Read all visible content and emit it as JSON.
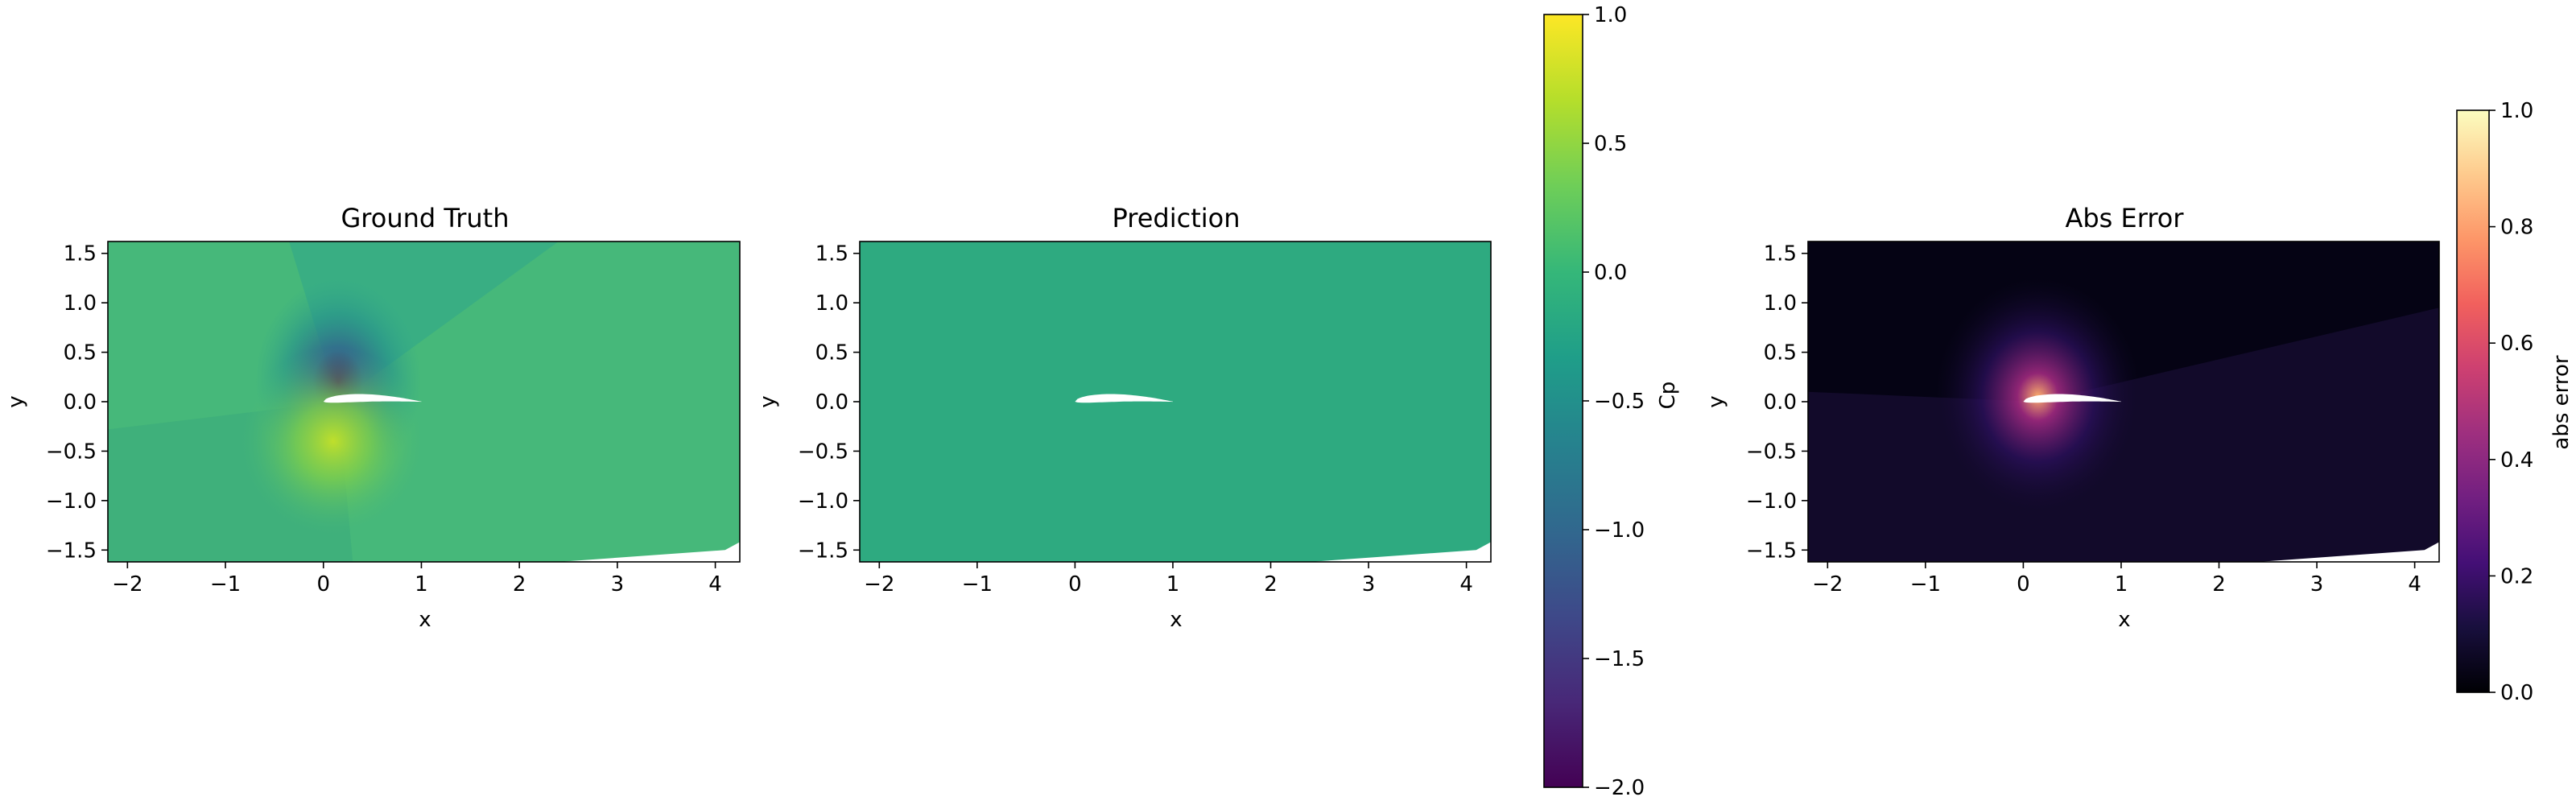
{
  "chart_data": [
    {
      "type": "heatmap",
      "title": "Ground Truth",
      "xlabel": "x",
      "ylabel": "y",
      "xlim": [
        -2.2,
        4.25
      ],
      "ylim": [
        -1.62,
        1.62
      ],
      "xticks": [
        -2,
        -1,
        0,
        1,
        2,
        3,
        4
      ],
      "yticks": [
        1.5,
        1.0,
        0.5,
        0.0,
        -0.5,
        -1.0,
        -1.5
      ],
      "xtick_labels": [
        "−2",
        "−1",
        "0",
        "1",
        "2",
        "3",
        "4"
      ],
      "ytick_labels": [
        "1.5",
        "1.0",
        "0.5",
        "0.0",
        "−0.5",
        "−1.0",
        "−1.5"
      ],
      "colormap": "viridis",
      "colorbar": "Cp",
      "grid": false,
      "field": {
        "background": "#46b87a",
        "lower_left": "#3fb07b",
        "upper_region": "#2fa58a",
        "suction_peak": "#46065f",
        "stagnation_peak": "#bfdf2b"
      }
    },
    {
      "type": "heatmap",
      "title": "Prediction",
      "xlabel": "x",
      "ylabel": "y",
      "xlim": [
        -2.2,
        4.25
      ],
      "ylim": [
        -1.62,
        1.62
      ],
      "xticks": [
        -2,
        -1,
        0,
        1,
        2,
        3,
        4
      ],
      "yticks": [
        1.5,
        1.0,
        0.5,
        0.0,
        -0.5,
        -1.0,
        -1.5
      ],
      "xtick_labels": [
        "−2",
        "−1",
        "0",
        "1",
        "2",
        "3",
        "4"
      ],
      "ytick_labels": [
        "1.5",
        "1.0",
        "0.5",
        "0.0",
        "−0.5",
        "−1.0",
        "−1.5"
      ],
      "colormap": "viridis",
      "colorbar": "Cp",
      "grid": false,
      "field": {
        "background": "#2eaa80"
      }
    },
    {
      "type": "heatmap",
      "title": "Abs Error",
      "xlabel": "x",
      "ylabel": "y",
      "xlim": [
        -2.2,
        4.25
      ],
      "ylim": [
        -1.62,
        1.62
      ],
      "xticks": [
        -2,
        -1,
        0,
        1,
        2,
        3,
        4
      ],
      "yticks": [
        1.5,
        1.0,
        0.5,
        0.0,
        -0.5,
        -1.0,
        -1.5
      ],
      "xtick_labels": [
        "−2",
        "−1",
        "0",
        "1",
        "2",
        "3",
        "4"
      ],
      "ytick_labels": [
        "1.5",
        "1.0",
        "0.5",
        "0.0",
        "−0.5",
        "−1.0",
        "−1.5"
      ],
      "colormap": "magma",
      "colorbar": "abs error",
      "grid": false,
      "field": {
        "background": "#120a2a",
        "upper_band": "#050314",
        "glow_inner": "#fcae6a",
        "glow_mid": "#a0297f",
        "glow_outer": "#2d1060"
      }
    }
  ],
  "colorbars": [
    {
      "label": "Cp",
      "colormap": "viridis",
      "range": [
        -2.0,
        1.0
      ],
      "ticks": [
        1.0,
        0.5,
        0.0,
        -0.5,
        -1.0,
        -1.5,
        -2.0
      ],
      "tick_labels": [
        "1.0",
        "0.5",
        "0.0",
        "−0.5",
        "−1.0",
        "−1.5",
        "−2.0"
      ],
      "stops": [
        "#440154",
        "#482878",
        "#3e4989",
        "#31688e",
        "#26828e",
        "#1f9e89",
        "#35b779",
        "#6ece58",
        "#b5de2b",
        "#fde725"
      ]
    },
    {
      "label": "abs error",
      "colormap": "magma",
      "range": [
        0.0,
        1.0
      ],
      "ticks": [
        1.0,
        0.8,
        0.6,
        0.4,
        0.2,
        0.0
      ],
      "tick_labels": [
        "1.0",
        "0.8",
        "0.6",
        "0.4",
        "0.2",
        "0.0"
      ],
      "stops": [
        "#000004",
        "#180f3d",
        "#440f76",
        "#721f81",
        "#9e2f7f",
        "#cd4071",
        "#f1605d",
        "#fd9668",
        "#feca8d",
        "#fcfdbf"
      ]
    }
  ]
}
